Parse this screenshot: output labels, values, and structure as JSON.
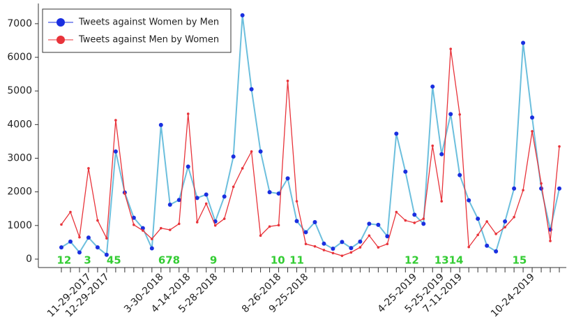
{
  "chart_data": {
    "type": "line",
    "categories": [
      null,
      null,
      null,
      "11-29-2017",
      null,
      "12-29-2017",
      null,
      null,
      null,
      null,
      null,
      "3-30-2018",
      null,
      null,
      "4-14-2018",
      null,
      null,
      "5-28-2018",
      null,
      null,
      null,
      null,
      null,
      null,
      "8-26-2018",
      null,
      null,
      "9-25-2018",
      null,
      null,
      null,
      null,
      null,
      null,
      null,
      null,
      null,
      null,
      null,
      "4-25-2019",
      null,
      null,
      "5-25-2019",
      null,
      "7-11-2019",
      null,
      null,
      null,
      null,
      null,
      null,
      null,
      "10-24-2019",
      null,
      null,
      null
    ],
    "series": [
      {
        "name": "Tweets against Women by Men",
        "color": "#6cbfdd",
        "marker_color": "#1a2fe0",
        "values": [
          350,
          520,
          200,
          640,
          350,
          130,
          3200,
          1980,
          1230,
          920,
          320,
          3990,
          1620,
          1760,
          2750,
          1820,
          1920,
          1120,
          1860,
          3050,
          7250,
          5050,
          3200,
          1990,
          1950,
          2400,
          1130,
          800,
          1100,
          460,
          310,
          510,
          330,
          520,
          1050,
          1020,
          680,
          3730,
          2600,
          1320,
          1050,
          5130,
          3120,
          4310,
          2500,
          1750,
          1200,
          400,
          230,
          1120,
          2100,
          6430,
          4210,
          2100,
          880,
          2100
        ]
      },
      {
        "name": "Tweets against Men by Women",
        "color": "#e8333a",
        "marker_color": "#e8333a",
        "values": [
          1030,
          1400,
          650,
          2700,
          1150,
          620,
          4130,
          1950,
          1020,
          850,
          600,
          920,
          870,
          1050,
          4320,
          1100,
          1650,
          1000,
          1200,
          2150,
          2700,
          3200,
          700,
          970,
          1010,
          5300,
          1720,
          450,
          380,
          270,
          180,
          100,
          200,
          350,
          700,
          350,
          450,
          1400,
          1150,
          1080,
          1200,
          3370,
          1720,
          6250,
          4300,
          360,
          720,
          1120,
          750,
          950,
          1250,
          2050,
          3800,
          2250,
          540,
          3350
        ]
      }
    ],
    "annotations": [
      {
        "text": "12",
        "x": 0.3
      },
      {
        "text": "3",
        "x": 2.9
      },
      {
        "text": "45",
        "x": 5.8
      },
      {
        "text": "678",
        "x": 11.9
      },
      {
        "text": "9",
        "x": 16.8
      },
      {
        "text": "10",
        "x": 23.9
      },
      {
        "text": "11",
        "x": 26
      },
      {
        "text": "12",
        "x": 38.7
      },
      {
        "text": "13",
        "x": 42
      },
      {
        "text": "14",
        "x": 43.6
      },
      {
        "text": "15",
        "x": 50.6
      }
    ],
    "ylim": [
      -250,
      7600
    ],
    "yticks": [
      0,
      1000,
      2000,
      3000,
      4000,
      5000,
      6000,
      7000
    ],
    "legend": "upper left"
  }
}
